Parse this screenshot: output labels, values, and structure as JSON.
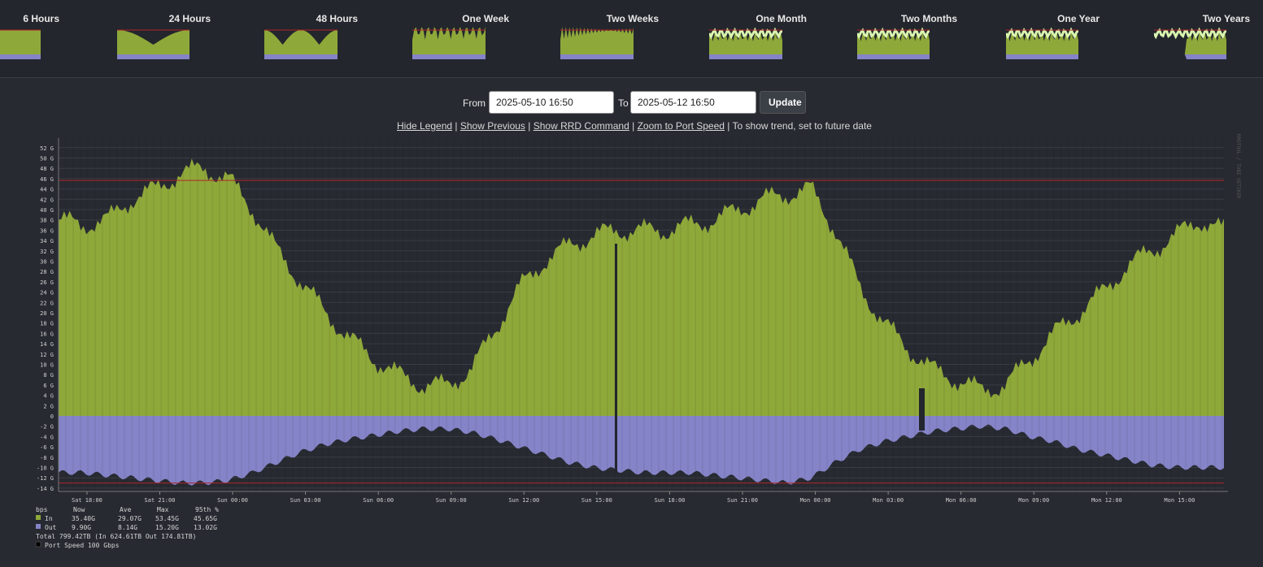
{
  "thumbnails": [
    {
      "label": "6 Hours"
    },
    {
      "label": "24 Hours"
    },
    {
      "label": "48 Hours"
    },
    {
      "label": "One Week"
    },
    {
      "label": "Two Weeks"
    },
    {
      "label": "One Month"
    },
    {
      "label": "Two Months"
    },
    {
      "label": "One Year"
    },
    {
      "label": "Two Years"
    }
  ],
  "controls": {
    "from_label": "From",
    "from_value": "2025-05-10 16:50",
    "to_label": "To",
    "to_value": "2025-05-12 16:50",
    "update_label": "Update"
  },
  "links": {
    "hide_legend": "Hide Legend",
    "show_previous": "Show Previous",
    "show_rrd": "Show RRD Command",
    "zoom_port": "Zoom to Port Speed",
    "trend_note": "To show trend, set to future date",
    "separator": " | "
  },
  "colors": {
    "in": "#8fa83a",
    "out": "#8584c8",
    "background": "#272a31",
    "threshold": "#b0242a"
  },
  "legend": {
    "unit": "bps",
    "columns": [
      "Now",
      "Ave",
      "Max",
      "95th %"
    ],
    "rows": [
      {
        "name": "In",
        "values": [
          "35.40G",
          "29.07G",
          "53.45G",
          "45.65G"
        ]
      },
      {
        "name": "Out",
        "values": [
          "9.90G",
          "8.14G",
          "15.20G",
          "13.02G"
        ]
      }
    ],
    "total_line": "Total 799.42TB  (In 624.61TB  Out 174.81TB)",
    "port_speed": "Port Speed 100 Gbps"
  },
  "watermark": "RRDTOOL / TOBI OETIKER",
  "chart_data": {
    "type": "area",
    "y_unit": "bps",
    "y_range": [
      -14,
      52
    ],
    "y_ticks": [
      "52 G",
      "50 G",
      "48 G",
      "46 G",
      "44 G",
      "42 G",
      "40 G",
      "38 G",
      "36 G",
      "34 G",
      "32 G",
      "30 G",
      "28 G",
      "26 G",
      "24 G",
      "22 G",
      "20 G",
      "18 G",
      "16 G",
      "14 G",
      "12 G",
      "10 G",
      "8 G",
      "6 G",
      "4 G",
      "2 G",
      "0",
      "-2 G",
      "-4 G",
      "-6 G",
      "-8 G",
      "-10 G",
      "-12 G",
      "-14 G"
    ],
    "x_ticks": [
      "Sat 18:00",
      "Sat 21:00",
      "Sun 00:00",
      "Sun 03:00",
      "Sun 06:00",
      "Sun 09:00",
      "Sun 12:00",
      "Sun 15:00",
      "Sun 18:00",
      "Sun 21:00",
      "Mon 00:00",
      "Mon 03:00",
      "Mon 06:00",
      "Mon 09:00",
      "Mon 12:00",
      "Mon 15:00"
    ],
    "x_hours": [
      0,
      3,
      6,
      9,
      12,
      15,
      18,
      21,
      24,
      27,
      30,
      33,
      36,
      39,
      42,
      45
    ],
    "x_start_offset": 1.17,
    "x_span": 48,
    "in_95th": 45.65,
    "out_95th": -13.02,
    "series": [
      {
        "name": "In",
        "unit": "Gbps",
        "x": [
          0,
          1,
          2,
          3,
          4,
          5,
          6,
          7,
          8,
          9,
          10,
          11,
          12,
          13,
          14,
          15,
          16,
          17,
          18,
          19,
          20,
          21,
          22,
          23,
          24,
          25,
          26,
          27,
          28,
          29,
          30,
          31,
          32,
          33,
          34,
          35,
          36,
          37,
          38,
          39,
          40,
          41,
          42,
          43,
          44,
          45,
          46,
          47,
          48
        ],
        "values": [
          38,
          37,
          38,
          42,
          44,
          47,
          48,
          46,
          40,
          32,
          26,
          20,
          15,
          11,
          8,
          6,
          6,
          9,
          17,
          25,
          30,
          33,
          35,
          36,
          36,
          36,
          37,
          38,
          40,
          42,
          43,
          44,
          36,
          25,
          18,
          13,
          9,
          7,
          5,
          6,
          11,
          16,
          20,
          24,
          29,
          32,
          35,
          38,
          36
        ]
      },
      {
        "name": "Out",
        "unit": "Gbps",
        "x": [
          0,
          1,
          2,
          3,
          4,
          5,
          6,
          7,
          8,
          9,
          10,
          11,
          12,
          13,
          14,
          15,
          16,
          17,
          18,
          19,
          20,
          21,
          22,
          23,
          24,
          25,
          26,
          27,
          28,
          29,
          30,
          31,
          32,
          33,
          34,
          35,
          36,
          37,
          38,
          39,
          40,
          41,
          42,
          43,
          44,
          45,
          46,
          47,
          48
        ],
        "values": [
          -11,
          -11,
          -11.5,
          -12,
          -12.5,
          -13,
          -13,
          -12.5,
          -11,
          -9,
          -7,
          -5.5,
          -4.5,
          -3.8,
          -3,
          -2.5,
          -2.5,
          -3.2,
          -4.5,
          -6,
          -7.5,
          -9,
          -10,
          -10.5,
          -11,
          -11,
          -11,
          -11.5,
          -12,
          -12.5,
          -13,
          -12,
          -9,
          -6.5,
          -5,
          -4,
          -3,
          -2.5,
          -2,
          -2.5,
          -4,
          -5,
          -6.5,
          -7.5,
          -8.5,
          -9.5,
          -10,
          -10,
          -10
        ]
      }
    ]
  }
}
